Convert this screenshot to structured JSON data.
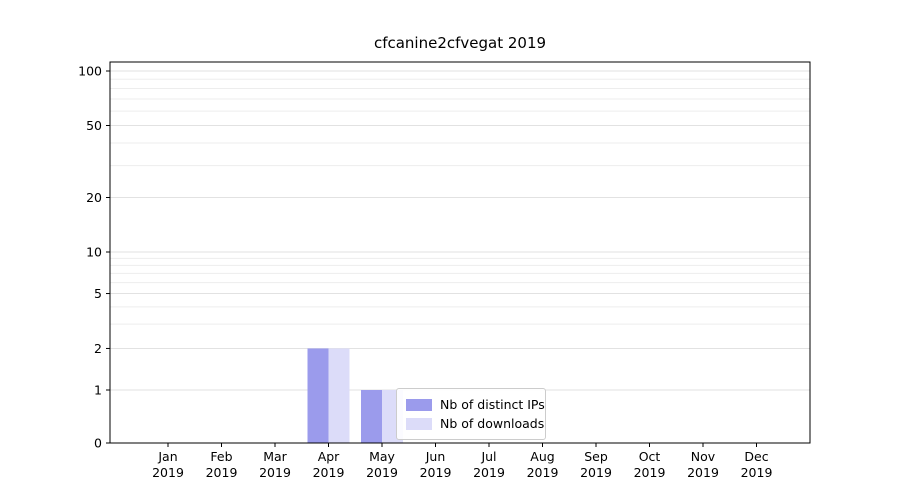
{
  "chart_data": {
    "type": "bar",
    "title": "cfcanine2cfvegat 2019",
    "categories": [
      "Jan 2019",
      "Feb 2019",
      "Mar 2019",
      "Apr 2019",
      "May 2019",
      "Jun 2019",
      "Jul 2019",
      "Aug 2019",
      "Sep 2019",
      "Oct 2019",
      "Nov 2019",
      "Dec 2019"
    ],
    "series": [
      {
        "name": "Nb of distinct IPs",
        "color": "#9b9bec",
        "values": [
          0,
          0,
          0,
          2,
          1,
          0,
          0,
          0,
          0,
          0,
          0,
          0
        ]
      },
      {
        "name": "Nb of downloads",
        "color": "#dcdcf9",
        "values": [
          0,
          0,
          0,
          2,
          1,
          0,
          0,
          0,
          0,
          0,
          0,
          0
        ]
      }
    ],
    "yscale": "symlog",
    "y_ticks": [
      0,
      1,
      2,
      5,
      10,
      20,
      50,
      100
    ],
    "y_minor_ticks": [
      2,
      3,
      4,
      6,
      7,
      8,
      9,
      20,
      30,
      40,
      60,
      70,
      80,
      90
    ],
    "ylim": [
      0,
      112
    ],
    "xlabel": "",
    "ylabel": "",
    "grid": "horizontal",
    "legend": {
      "position": "lower center"
    }
  }
}
